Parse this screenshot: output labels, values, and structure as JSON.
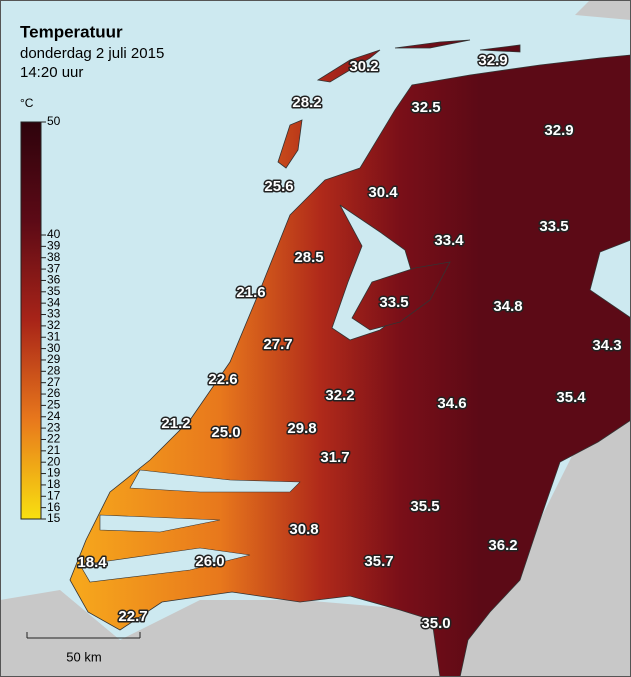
{
  "header": {
    "title": "Temperatuur",
    "date": "donderdag 2 juli 2015",
    "time": "14:20 uur"
  },
  "legend": {
    "unit": "°C",
    "ticks": [
      50,
      40,
      39,
      38,
      37,
      36,
      35,
      34,
      33,
      32,
      31,
      30,
      29,
      28,
      27,
      26,
      25,
      24,
      23,
      22,
      21,
      20,
      19,
      18,
      17,
      16,
      15
    ]
  },
  "stations": [
    30.2,
    32.9,
    28.2,
    32.5,
    32.9,
    25.6,
    30.4,
    33.4,
    33.5,
    28.5,
    21.6,
    33.5,
    34.8,
    27.7,
    34.3,
    22.6,
    32.2,
    34.6,
    35.4,
    21.2,
    {
      "value": 25,
      "label": "25.0"
    },
    29.8,
    31.7,
    35.5,
    30.8,
    36.2,
    18.4,
    {
      "value": 26,
      "label": "26.0"
    },
    35.7,
    22.7,
    {
      "value": 35,
      "label": "35.0"
    }
  ],
  "scale_bar": {
    "label": "50 km"
  }
}
